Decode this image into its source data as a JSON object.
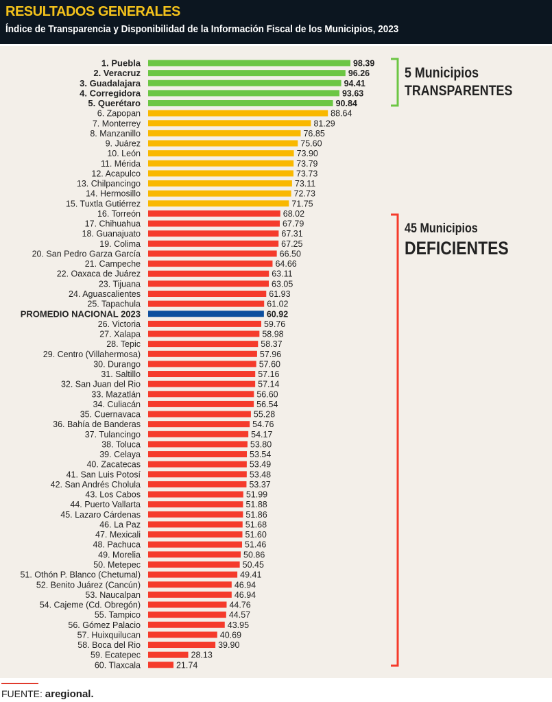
{
  "header": {
    "title": "RESULTADOS GENERALES",
    "subtitle": "Índice de Transparencia y Disponibilidad de la Información Fiscal de los Municipios, 2023"
  },
  "groups": {
    "transparent_count": "5 Municipios",
    "transparent_label": "TRANSPARENTES",
    "deficient_count": "45 Municipios",
    "deficient_label": "DEFICIENTES"
  },
  "footer": {
    "source_label": "FUENTE:",
    "source_name": "aregional."
  },
  "colors": {
    "green": "#6cc644",
    "yellow": "#f9b800",
    "red": "#f53b2b",
    "blue": "#0d4f9e"
  },
  "chart_data": {
    "type": "bar",
    "orientation": "horizontal",
    "title": "RESULTADOS GENERALES",
    "subtitle": "Índice de Transparencia y Disponibilidad de la Información Fiscal de los Municipios, 2023",
    "categories": [
      "1. Puebla",
      "2. Veracruz",
      "3. Guadalajara",
      "4. Corregidora",
      "5. Querétaro",
      "6. Zapopan",
      "7. Monterrey",
      "8. Manzanillo",
      "9. Juárez",
      "10. León",
      "11. Mérida",
      "12. Acapulco",
      "13. Chilpancingo",
      "14. Hermosillo",
      "15. Tuxtla Gutiérrez",
      "16. Torreón",
      "17. Chihuahua",
      "18. Guanajuato",
      "19. Colima",
      "20. San Pedro Garza García",
      "21. Campeche",
      "22. Oaxaca de Juárez",
      "23. Tijuana",
      "24. Aguascalientes",
      "25. Tapachula",
      "PROMEDIO NACIONAL 2023",
      "26. Victoria",
      "27. Xalapa",
      "28. Tepic",
      "29. Centro (Villahermosa)",
      "30. Durango",
      "31. Saltillo",
      "32. San Juan del Rio",
      "33. Mazatlán",
      "34. Culiacán",
      "35. Cuernavaca",
      "36. Bahía de Banderas",
      "37. Tulancingo",
      "38. Toluca",
      "39. Celaya",
      "40. Zacatecas",
      "41. San Luis Potosí",
      "42. San Andrés Cholula",
      "43. Los Cabos",
      "44. Puerto Vallarta",
      "45. Lazaro Cárdenas",
      "46. La Paz",
      "47. Mexicali",
      "48. Pachuca",
      "49. Morelia",
      "50. Metepec",
      "51. Othón P. Blanco (Chetumal)",
      "52. Benito Juárez (Cancún)",
      "53. Naucalpan",
      "54. Cajeme (Cd. Obregón)",
      "55. Tampico",
      "56. Gómez Palacio",
      "57. Huixquilucan",
      "58. Boca del Rio",
      "59. Ecatepec",
      "60. Tlaxcala"
    ],
    "values": [
      "98.39",
      "96.26",
      "94.41",
      "93.63",
      "90.84",
      "88.64",
      "81.29",
      "76.85",
      "75.60",
      "73.90",
      "73.79",
      "73.73",
      "73.11",
      "72.73",
      "71.75",
      "68.02",
      "67.79",
      "67.31",
      "67.25",
      "66.50",
      "64.66",
      "63.11",
      "63.05",
      "61.93",
      "61.02",
      "60.92",
      "59.76",
      "58.98",
      "58.37",
      "57.96",
      "57.60",
      "57.16",
      "57.14",
      "56.60",
      "56.54",
      "55.28",
      "54.76",
      "54.17",
      "53.80",
      "53.54",
      "53.49",
      "53.48",
      "53.37",
      "51.99",
      "51.88",
      "51.86",
      "51.68",
      "51.60",
      "51.46",
      "50.86",
      "50.45",
      "49.41",
      "46.94",
      "46.94",
      "44.76",
      "44.57",
      "43.95",
      "40.69",
      "39.90",
      "28.13",
      "21.74"
    ],
    "tiers": [
      "green",
      "green",
      "green",
      "green",
      "green",
      "yellow",
      "yellow",
      "yellow",
      "yellow",
      "yellow",
      "yellow",
      "yellow",
      "yellow",
      "yellow",
      "yellow",
      "red",
      "red",
      "red",
      "red",
      "red",
      "red",
      "red",
      "red",
      "red",
      "red",
      "blue",
      "red",
      "red",
      "red",
      "red",
      "red",
      "red",
      "red",
      "red",
      "red",
      "red",
      "red",
      "red",
      "red",
      "red",
      "red",
      "red",
      "red",
      "red",
      "red",
      "red",
      "red",
      "red",
      "red",
      "red",
      "red",
      "red",
      "red",
      "red",
      "red",
      "red",
      "red",
      "red",
      "red",
      "red",
      "red"
    ]
  }
}
